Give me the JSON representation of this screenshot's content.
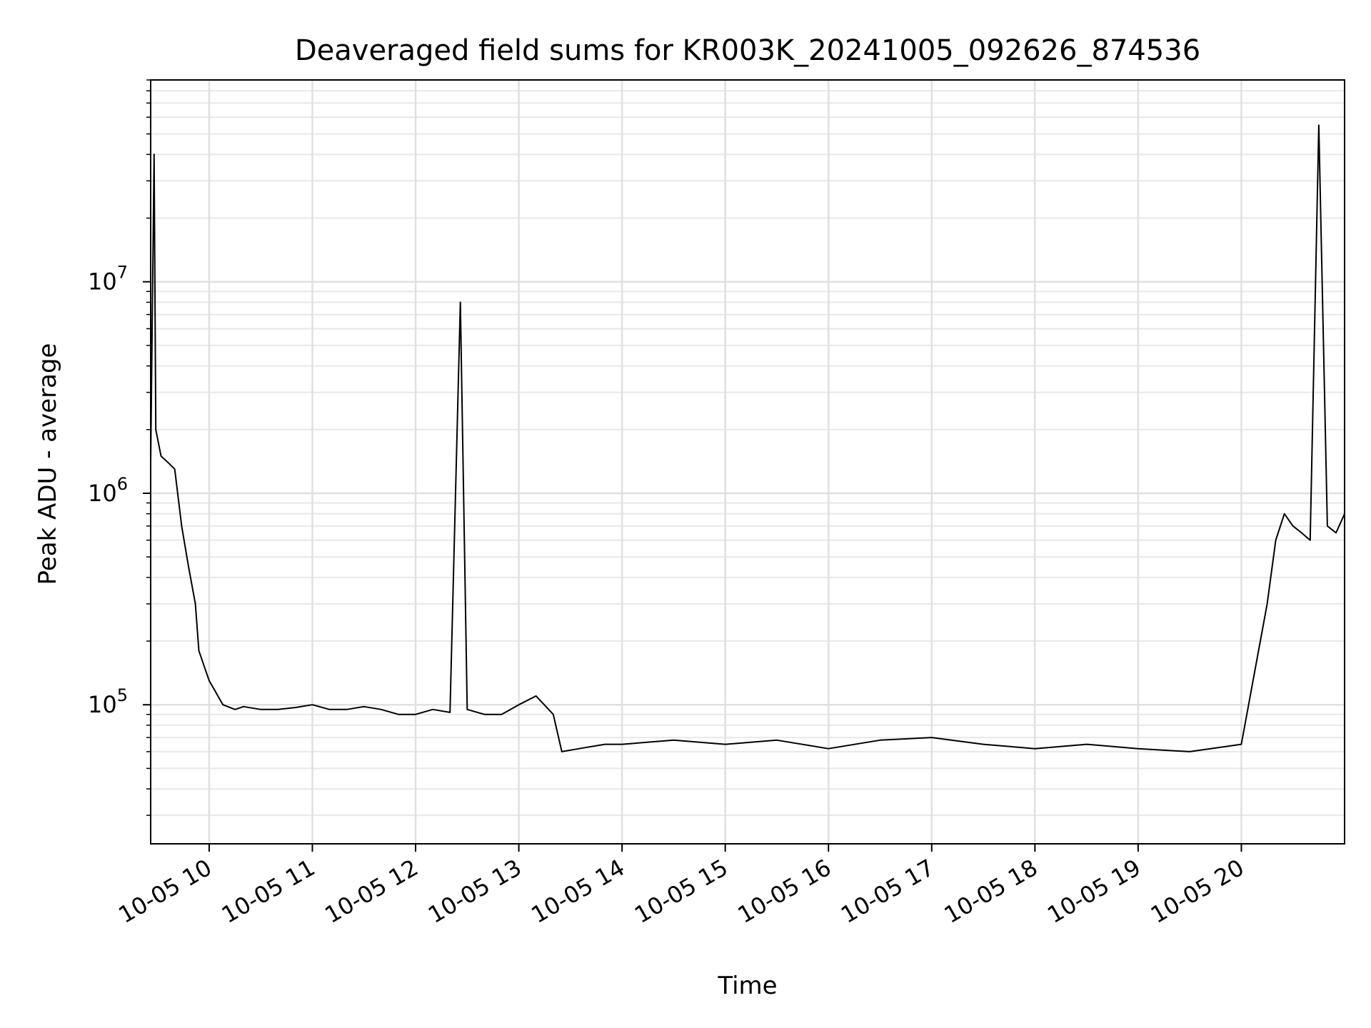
{
  "chart_data": {
    "type": "line",
    "title": "Deaveraged field sums for KR003K_20241005_092626_874536",
    "xlabel": "Time",
    "ylabel": "Peak ADU - average",
    "yscale": "log",
    "ylim": [
      22000,
      90000000
    ],
    "xlim": [
      "2024-10-05 09:26",
      "2024-10-05 21:00"
    ],
    "grid": true,
    "line_color": "#000000",
    "x_ticks": [
      {
        "label": "10-05 10",
        "time": "2024-10-05 10:00"
      },
      {
        "label": "10-05 11",
        "time": "2024-10-05 11:00"
      },
      {
        "label": "10-05 12",
        "time": "2024-10-05 12:00"
      },
      {
        "label": "10-05 13",
        "time": "2024-10-05 13:00"
      },
      {
        "label": "10-05 14",
        "time": "2024-10-05 14:00"
      },
      {
        "label": "10-05 15",
        "time": "2024-10-05 15:00"
      },
      {
        "label": "10-05 16",
        "time": "2024-10-05 16:00"
      },
      {
        "label": "10-05 17",
        "time": "2024-10-05 17:00"
      },
      {
        "label": "10-05 18",
        "time": "2024-10-05 18:00"
      },
      {
        "label": "10-05 19",
        "time": "2024-10-05 19:00"
      },
      {
        "label": "10-05 20",
        "time": "2024-10-05 20:00"
      }
    ],
    "y_ticks": [
      {
        "base": "10",
        "exp": "5",
        "value": 100000
      },
      {
        "base": "10",
        "exp": "6",
        "value": 1000000
      },
      {
        "base": "10",
        "exp": "7",
        "value": 10000000
      }
    ],
    "series": [
      {
        "x": [
          "2024-10-05 09:26",
          "2024-10-05 09:28",
          "2024-10-05 09:29",
          "2024-10-05 09:32",
          "2024-10-05 09:36",
          "2024-10-05 09:40",
          "2024-10-05 09:44",
          "2024-10-05 09:48",
          "2024-10-05 09:52",
          "2024-10-05 09:54",
          "2024-10-05 10:00",
          "2024-10-05 10:08",
          "2024-10-05 10:15",
          "2024-10-05 10:20",
          "2024-10-05 10:30",
          "2024-10-05 10:40",
          "2024-10-05 10:50",
          "2024-10-05 11:00",
          "2024-10-05 11:10",
          "2024-10-05 11:20",
          "2024-10-05 11:30",
          "2024-10-05 11:40",
          "2024-10-05 11:50",
          "2024-10-05 12:00",
          "2024-10-05 12:10",
          "2024-10-05 12:20",
          "2024-10-05 12:26",
          "2024-10-05 12:30",
          "2024-10-05 12:40",
          "2024-10-05 12:50",
          "2024-10-05 13:00",
          "2024-10-05 13:10",
          "2024-10-05 13:20",
          "2024-10-05 13:25",
          "2024-10-05 13:35",
          "2024-10-05 13:50",
          "2024-10-05 14:00",
          "2024-10-05 14:30",
          "2024-10-05 15:00",
          "2024-10-05 15:30",
          "2024-10-05 16:00",
          "2024-10-05 16:30",
          "2024-10-05 17:00",
          "2024-10-05 17:30",
          "2024-10-05 18:00",
          "2024-10-05 18:30",
          "2024-10-05 19:00",
          "2024-10-05 19:30",
          "2024-10-05 20:00",
          "2024-10-05 20:15",
          "2024-10-05 20:20",
          "2024-10-05 20:25",
          "2024-10-05 20:30",
          "2024-10-05 20:35",
          "2024-10-05 20:40",
          "2024-10-05 20:45",
          "2024-10-05 20:50",
          "2024-10-05 20:55",
          "2024-10-05 21:00"
        ],
        "y": [
          1400000,
          40000000,
          2000000,
          1500000,
          1400000,
          1300000,
          700000,
          450000,
          300000,
          180000,
          130000,
          100000,
          95000,
          98000,
          95000,
          95000,
          97000,
          100000,
          95000,
          95000,
          98000,
          95000,
          90000,
          90000,
          95000,
          92000,
          8000000,
          95000,
          90000,
          90000,
          100000,
          110000,
          90000,
          60000,
          62000,
          65000,
          65000,
          68000,
          65000,
          68000,
          62000,
          68000,
          70000,
          65000,
          62000,
          65000,
          62000,
          60000,
          65000,
          300000,
          600000,
          800000,
          700000,
          650000,
          600000,
          55000000,
          700000,
          650000,
          800000
        ]
      }
    ]
  }
}
